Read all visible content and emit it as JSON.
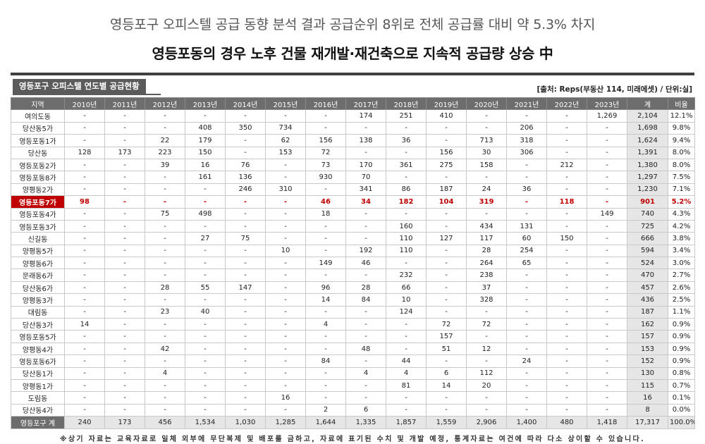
{
  "headline1": "영등포구 오피스텔 공급 동향 분석 결과 공급순위 8위로 전체 공급률 대비 약 5.3% 차지",
  "headline2": "영등포동의 경우 노후 건물 재개발·재건축으로 지속적 공급량 상승 中",
  "table_title": "영등포구 오피스텔 연도별 공급현황",
  "source": "[출처: Reps(부동산 114, 미래에셋) / 단위:실]",
  "columns": [
    "지역",
    "2010년",
    "2011년",
    "2012년",
    "2013년",
    "2014년",
    "2015년",
    "2016년",
    "2017년",
    "2018년",
    "2019년",
    "2020년",
    "2021년",
    "2022년",
    "2023년",
    "계",
    "비율"
  ],
  "rows": [
    [
      "여의도동",
      "-",
      "-",
      "-",
      "-",
      "-",
      "-",
      "-",
      "174",
      "251",
      "410",
      "-",
      "-",
      "-",
      "1,269",
      "2,104",
      "12.1%"
    ],
    [
      "당산동5가",
      "-",
      "-",
      "-",
      "408",
      "350",
      "734",
      "-",
      "-",
      "-",
      "-",
      "-",
      "206",
      "-",
      "-",
      "1,698",
      "9.8%"
    ],
    [
      "영등포동1가",
      "-",
      "-",
      "22",
      "179",
      "-",
      "62",
      "156",
      "138",
      "36",
      "-",
      "713",
      "318",
      "-",
      "-",
      "1,624",
      "9.4%"
    ],
    [
      "당산동",
      "128",
      "173",
      "223",
      "150",
      "-",
      "153",
      "72",
      "-",
      "-",
      "156",
      "30",
      "306",
      "-",
      "-",
      "1,391",
      "8.0%"
    ],
    [
      "영등포동2가",
      "-",
      "-",
      "39",
      "16",
      "76",
      "-",
      "73",
      "170",
      "361",
      "275",
      "158",
      "-",
      "212",
      "-",
      "1,380",
      "8.0%"
    ],
    [
      "영등포동8가",
      "-",
      "-",
      "-",
      "161",
      "136",
      "-",
      "930",
      "70",
      "-",
      "-",
      "-",
      "-",
      "-",
      "-",
      "1,297",
      "7.5%"
    ],
    [
      "양평동2가",
      "-",
      "-",
      "-",
      "-",
      "246",
      "310",
      "-",
      "341",
      "86",
      "187",
      "24",
      "36",
      "-",
      "-",
      "1,230",
      "7.1%"
    ],
    [
      "영등포동7가",
      "98",
      "-",
      "-",
      "-",
      "-",
      "-",
      "46",
      "34",
      "182",
      "104",
      "319",
      "-",
      "118",
      "-",
      "901",
      "5.2%"
    ],
    [
      "영등포동4가",
      "-",
      "-",
      "75",
      "498",
      "-",
      "-",
      "18",
      "-",
      "-",
      "-",
      "-",
      "-",
      "-",
      "149",
      "740",
      "4.3%"
    ],
    [
      "영등포동3가",
      "-",
      "-",
      "-",
      "-",
      "-",
      "-",
      "-",
      "-",
      "160",
      "-",
      "434",
      "131",
      "-",
      "-",
      "725",
      "4.2%"
    ],
    [
      "신길동",
      "-",
      "-",
      "-",
      "27",
      "75",
      "-",
      "-",
      "-",
      "110",
      "127",
      "117",
      "60",
      "150",
      "-",
      "666",
      "3.8%"
    ],
    [
      "양평동5가",
      "-",
      "-",
      "-",
      "-",
      "-",
      "10",
      "-",
      "192",
      "110",
      "-",
      "28",
      "254",
      "-",
      "-",
      "594",
      "3.4%"
    ],
    [
      "양평동6가",
      "-",
      "-",
      "-",
      "-",
      "-",
      "-",
      "149",
      "46",
      "-",
      "-",
      "264",
      "65",
      "-",
      "-",
      "524",
      "3.0%"
    ],
    [
      "문래동6가",
      "-",
      "-",
      "-",
      "-",
      "-",
      "-",
      "-",
      "-",
      "232",
      "-",
      "238",
      "-",
      "-",
      "-",
      "470",
      "2.7%"
    ],
    [
      "당산동6가",
      "-",
      "-",
      "28",
      "55",
      "147",
      "-",
      "96",
      "28",
      "66",
      "-",
      "37",
      "-",
      "-",
      "-",
      "457",
      "2.6%"
    ],
    [
      "양평동3가",
      "-",
      "-",
      "-",
      "-",
      "-",
      "-",
      "14",
      "84",
      "10",
      "-",
      "328",
      "-",
      "-",
      "-",
      "436",
      "2.5%"
    ],
    [
      "대림동",
      "-",
      "-",
      "23",
      "40",
      "-",
      "-",
      "-",
      "-",
      "124",
      "-",
      "-",
      "-",
      "-",
      "-",
      "187",
      "1.1%"
    ],
    [
      "당산동3가",
      "14",
      "-",
      "-",
      "-",
      "-",
      "-",
      "4",
      "-",
      "-",
      "72",
      "72",
      "-",
      "-",
      "-",
      "162",
      "0.9%"
    ],
    [
      "영등포동5가",
      "-",
      "-",
      "-",
      "-",
      "-",
      "-",
      "-",
      "-",
      "-",
      "157",
      "-",
      "-",
      "-",
      "-",
      "157",
      "0.9%"
    ],
    [
      "양평동4가",
      "-",
      "-",
      "42",
      "-",
      "-",
      "-",
      "-",
      "48",
      "-",
      "51",
      "12",
      "-",
      "-",
      "-",
      "153",
      "0.9%"
    ],
    [
      "영등포동6가",
      "-",
      "-",
      "-",
      "-",
      "-",
      "-",
      "84",
      "-",
      "44",
      "-",
      "-",
      "24",
      "-",
      "-",
      "152",
      "0.9%"
    ],
    [
      "당산동1가",
      "-",
      "-",
      "4",
      "-",
      "-",
      "-",
      "-",
      "4",
      "4",
      "6",
      "112",
      "-",
      "-",
      "-",
      "130",
      "0.8%"
    ],
    [
      "양평동1가",
      "-",
      "-",
      "-",
      "-",
      "-",
      "-",
      "-",
      "-",
      "81",
      "14",
      "20",
      "-",
      "-",
      "-",
      "115",
      "0.7%"
    ],
    [
      "도림동",
      "-",
      "-",
      "-",
      "-",
      "-",
      "16",
      "-",
      "-",
      "-",
      "-",
      "-",
      "-",
      "-",
      "-",
      "16",
      "0.1%"
    ],
    [
      "당산동4가",
      "-",
      "-",
      "-",
      "-",
      "-",
      "-",
      "2",
      "6",
      "-",
      "-",
      "-",
      "-",
      "-",
      "-",
      "8",
      "0.0%"
    ]
  ],
  "highlight_region": "영등포동7가",
  "total_row": [
    "영등포구 계",
    "240",
    "173",
    "456",
    "1,534",
    "1,030",
    "1,285",
    "1,644",
    "1,335",
    "1,857",
    "1,559",
    "2,906",
    "1,400",
    "480",
    "1,418",
    "17,317",
    "100.0%"
  ],
  "footnote": "※상기 자료는 교육자료로 일체 외부에 무단복제 및 배포를 금하고, 자료에 표기된 수치 및 개발 예정, 통계자료는 여건에 따라 다소 상이할 수 있습니다.",
  "colors": {
    "header_bg": "#6d6d6d",
    "highlight": "#c00000",
    "sum_bg": "#e6e6e6"
  }
}
